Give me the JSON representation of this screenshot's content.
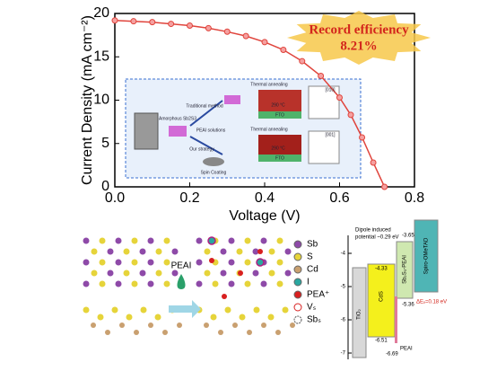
{
  "chart_data": {
    "type": "line",
    "xlabel": "Voltage (V)",
    "ylabel": "Current Density (mA cm⁻²)",
    "xlim": [
      0,
      0.8
    ],
    "ylim": [
      0,
      20
    ],
    "xticks": [
      {
        "value": 0,
        "label": "0.0"
      },
      0.2,
      0.4,
      0.6,
      0.8
    ],
    "yticks": [
      0,
      5,
      10,
      15,
      20
    ],
    "annotation": [
      "Record efficiency",
      "8.21%"
    ],
    "series": [
      {
        "name": "Sb2S3-PEAI",
        "color": "#e0443c",
        "x": [
          0,
          0.05,
          0.1,
          0.15,
          0.2,
          0.25,
          0.3,
          0.35,
          0.4,
          0.45,
          0.5,
          0.55,
          0.6,
          0.63,
          0.66,
          0.69,
          0.72
        ],
        "values": [
          19.2,
          19.1,
          19.0,
          18.8,
          18.6,
          18.3,
          17.9,
          17.4,
          16.7,
          15.8,
          14.5,
          12.8,
          10.3,
          8.3,
          5.7,
          2.8,
          0
        ]
      }
    ]
  },
  "inset": {
    "labels": [
      "Amorphous Sb2S3",
      "Traditional method",
      "Thermal annealing",
      "290 °C",
      "FTO",
      "PEAI solutions",
      "Our strategy",
      "Thermal annealing",
      "290 °C",
      "FTO",
      "Spin Coating",
      "[010]",
      "[001]"
    ]
  },
  "crystal": {
    "arrow_label": "PEAI",
    "legend": [
      "Sb",
      "S",
      "Cd",
      "I",
      "PEA⁺",
      "Vₛ",
      "Sbₛ"
    ]
  },
  "band": {
    "axis": [
      -4,
      -5,
      -6,
      -7
    ],
    "dipole": [
      "Dipole induced",
      "potential ~0.29 eV"
    ],
    "layers": [
      "TiO₂",
      "CdS",
      "Sb₂S₃-PEAI",
      "Spiro-OMeTAD",
      "PEAI"
    ],
    "levels": [
      "-4.33",
      "-3.65",
      "-5.36",
      "-6.51",
      "-6.69"
    ],
    "offset": "ΔEᵥ=0.18 eV"
  }
}
